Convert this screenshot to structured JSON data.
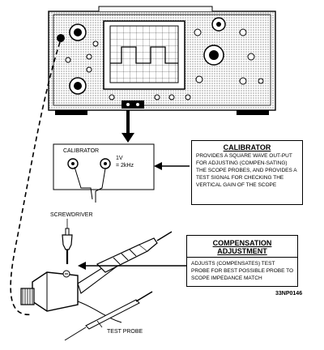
{
  "calibrator_panel": {
    "title": "CALIBRATOR",
    "signal_level": "1V",
    "signal_freq": "= 2kHz"
  },
  "calibrator_callout": {
    "heading": "CALIBRATOR",
    "text": "PROVIDES A SQUARE WAVE OUT-PUT FOR ADJUSTING (COMPEN-SATING) THE SCOPE PROBES, AND PROVIDES A TEST SIGNAL FOR CHECKING THE VERTICAL GAIN OF THE SCOPE"
  },
  "compensation_callout": {
    "heading_line1": "COMPENSATION",
    "heading_line2": "ADJUSTMENT",
    "text": "ADJUSTS (COMPENSATES) TEST PROBE FOR BEST POSSIBLE PROBE TO SCOPE IMPEDANCE MATCH"
  },
  "labels": {
    "screwdriver": "SCREWDRIVER",
    "test_probe": "TEST PROBE",
    "figure_id": "33NP0146"
  }
}
